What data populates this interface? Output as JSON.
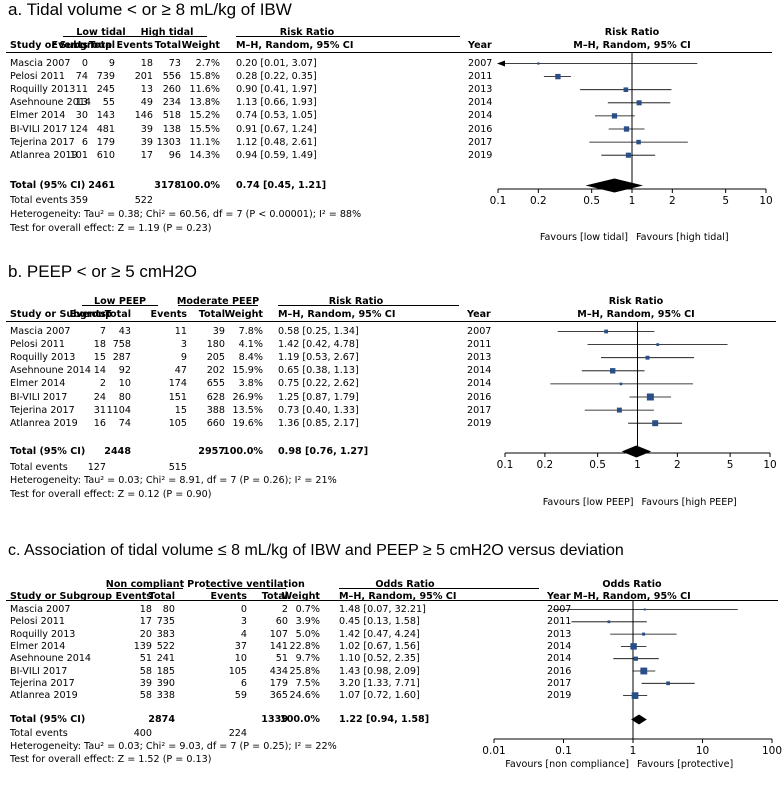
{
  "panels": [
    {
      "title": "a. Tidal volume < or ≥ 8 mL/kg of IBW",
      "group1": "Low tidal",
      "group2": "High tidal",
      "h_study": "Study or Subgroup",
      "h_events1": "Events",
      "h_total1": "Total",
      "h_events2": "Events",
      "h_total2": "Total",
      "h_weight": "Weight",
      "h_measure": "Risk Ratio",
      "h_method": "M–H, Random, 95% CI",
      "h_year": "Year",
      "rows": [
        {
          "study": "Mascia 2007",
          "e1": "0",
          "n1": "9",
          "e2": "18",
          "n2": "73",
          "weight": "2.7%",
          "ci": "0.20 [0.01, 3.07]",
          "year": "2007"
        },
        {
          "study": "Pelosi 2011",
          "e1": "74",
          "n1": "739",
          "e2": "201",
          "n2": "556",
          "weight": "15.8%",
          "ci": "0.28 [0.22, 0.35]",
          "year": "2011"
        },
        {
          "study": "Roquilly 2013",
          "e1": "11",
          "n1": "245",
          "e2": "13",
          "n2": "260",
          "weight": "11.6%",
          "ci": "0.90 [0.41, 1.97]",
          "year": "2013"
        },
        {
          "study": "Asehnoune 2014",
          "e1": "13",
          "n1": "55",
          "e2": "49",
          "n2": "234",
          "weight": "13.8%",
          "ci": "1.13 [0.66, 1.93]",
          "year": "2014"
        },
        {
          "study": "Elmer 2014",
          "e1": "30",
          "n1": "143",
          "e2": "146",
          "n2": "518",
          "weight": "15.2%",
          "ci": "0.74 [0.53, 1.05]",
          "year": "2014"
        },
        {
          "study": "BI-VILI 2017",
          "e1": "124",
          "n1": "481",
          "e2": "39",
          "n2": "138",
          "weight": "15.5%",
          "ci": "0.91 [0.67, 1.24]",
          "year": "2016"
        },
        {
          "study": "Tejerina 2017",
          "e1": "6",
          "n1": "179",
          "e2": "39",
          "n2": "1303",
          "weight": "11.1%",
          "ci": "1.12 [0.48, 2.61]",
          "year": "2017"
        },
        {
          "study": "Atlanrea 2019",
          "e1": "101",
          "n1": "610",
          "e2": "17",
          "n2": "96",
          "weight": "14.3%",
          "ci": "0.94 [0.59, 1.49]",
          "year": "2019"
        }
      ],
      "total": {
        "label": "Total (95% CI)",
        "n1": "2461",
        "n2": "3178",
        "weight": "100.0%",
        "ci": "0.74 [0.45, 1.21]"
      },
      "events": {
        "label": "Total events",
        "e1": "359",
        "e2": "522"
      },
      "heterogeneity": "Heterogeneity: Tau² = 0.38; Chi² = 60.56, df = 7 (P < 0.00001); I² = 88%",
      "overall": "Test for overall effect: Z = 1.19 (P = 0.23)",
      "plot_h1": "Risk Ratio",
      "plot_h2": "M–H, Random, 95% CI",
      "favours_left": "Favours [low tidal]",
      "favours_right": "Favours [high tidal]"
    },
    {
      "title": "b. PEEP  < or ≥ 5 cmH2O",
      "group1": "Low PEEP",
      "group2": "Moderate PEEP",
      "h_study": "Study or Subgroup",
      "h_events1": "Events",
      "h_total1": "Total",
      "h_events2": "Events",
      "h_total2": "Total",
      "h_weight": "Weight",
      "h_measure": "Risk Ratio",
      "h_method": "M–H, Random, 95% CI",
      "h_year": "Year",
      "rows": [
        {
          "study": "Mascia 2007",
          "e1": "7",
          "n1": "43",
          "e2": "11",
          "n2": "39",
          "weight": "7.8%",
          "ci": "0.58 [0.25, 1.34]",
          "year": "2007"
        },
        {
          "study": "Pelosi 2011",
          "e1": "18",
          "n1": "758",
          "e2": "3",
          "n2": "180",
          "weight": "4.1%",
          "ci": "1.42 [0.42, 4.78]",
          "year": "2011"
        },
        {
          "study": "Roquilly 2013",
          "e1": "15",
          "n1": "287",
          "e2": "9",
          "n2": "205",
          "weight": "8.4%",
          "ci": "1.19 [0.53, 2.67]",
          "year": "2013"
        },
        {
          "study": "Asehnoune 2014",
          "e1": "14",
          "n1": "92",
          "e2": "47",
          "n2": "202",
          "weight": "15.9%",
          "ci": "0.65 [0.38, 1.13]",
          "year": "2014"
        },
        {
          "study": "Elmer 2014",
          "e1": "2",
          "n1": "10",
          "e2": "174",
          "n2": "655",
          "weight": "3.8%",
          "ci": "0.75 [0.22, 2.62]",
          "year": "2014"
        },
        {
          "study": "BI-VILI 2017",
          "e1": "24",
          "n1": "80",
          "e2": "151",
          "n2": "628",
          "weight": "26.9%",
          "ci": "1.25 [0.87, 1.79]",
          "year": "2016"
        },
        {
          "study": "Tejerina 2017",
          "e1": "31",
          "n1": "1104",
          "e2": "15",
          "n2": "388",
          "weight": "13.5%",
          "ci": "0.73 [0.40, 1.33]",
          "year": "2017"
        },
        {
          "study": "Atlanrea 2019",
          "e1": "16",
          "n1": "74",
          "e2": "105",
          "n2": "660",
          "weight": "19.6%",
          "ci": "1.36 [0.85, 2.17]",
          "year": "2019"
        }
      ],
      "total": {
        "label": "Total (95% CI)",
        "n1": "2448",
        "n2": "2957",
        "weight": "100.0%",
        "ci": "0.98 [0.76, 1.27]"
      },
      "events": {
        "label": "Total events",
        "e1": "127",
        "e2": "515"
      },
      "heterogeneity": "Heterogeneity: Tau² = 0.03; Chi² = 8.91, df = 7 (P = 0.26); I² = 21%",
      "overall": "Test for overall effect: Z = 0.12 (P = 0.90)",
      "plot_h1": "Risk Ratio",
      "plot_h2": "M–H, Random, 95% CI",
      "favours_left": "Favours [low PEEP]",
      "favours_right": "Favours [high PEEP]"
    },
    {
      "title": "c. Association of tidal volume ≤ 8 mL/kg of IBW and PEEP ≥ 5 cmH2O versus deviation",
      "group1": "Non compliant",
      "group2": "Protective ventilation",
      "h_study": "Study or Subgroup",
      "h_events1": "Events",
      "h_total1": "Total",
      "h_events2": "Events",
      "h_total2": "Total",
      "h_weight": "Weight",
      "h_measure": "Odds Ratio",
      "h_method": "M–H, Random, 95% CI",
      "h_year": "Year",
      "rows": [
        {
          "study": "Mascia 2007",
          "e1": "18",
          "n1": "80",
          "e2": "0",
          "n2": "2",
          "weight": "0.7%",
          "ci": "1.48 [0.07, 32.21]",
          "year": "2007"
        },
        {
          "study": "Pelosi 2011",
          "e1": "17",
          "n1": "735",
          "e2": "3",
          "n2": "60",
          "weight": "3.9%",
          "ci": "0.45 [0.13, 1.58]",
          "year": "2011"
        },
        {
          "study": "Roquilly 2013",
          "e1": "20",
          "n1": "383",
          "e2": "4",
          "n2": "107",
          "weight": "5.0%",
          "ci": "1.42 [0.47, 4.24]",
          "year": "2013"
        },
        {
          "study": "Elmer 2014",
          "e1": "139",
          "n1": "522",
          "e2": "37",
          "n2": "141",
          "weight": "22.8%",
          "ci": "1.02 [0.67, 1.56]",
          "year": "2014"
        },
        {
          "study": "Asehnoune 2014",
          "e1": "51",
          "n1": "241",
          "e2": "10",
          "n2": "51",
          "weight": "9.7%",
          "ci": "1.10 [0.52, 2.35]",
          "year": "2014"
        },
        {
          "study": "BI-VILI 2017",
          "e1": "58",
          "n1": "185",
          "e2": "105",
          "n2": "434",
          "weight": "25.8%",
          "ci": "1.43 [0.98, 2.09]",
          "year": "2016"
        },
        {
          "study": "Tejerina 2017",
          "e1": "39",
          "n1": "390",
          "e2": "6",
          "n2": "179",
          "weight": "7.5%",
          "ci": "3.20 [1.33, 7.71]",
          "year": "2017"
        },
        {
          "study": "Atlanrea 2019",
          "e1": "58",
          "n1": "338",
          "e2": "59",
          "n2": "365",
          "weight": "24.6%",
          "ci": "1.07 [0.72, 1.60]",
          "year": "2019"
        }
      ],
      "total": {
        "label": "Total (95% CI)",
        "n1": "2874",
        "n2": "1339",
        "weight": "100.0%",
        "ci": "1.22 [0.94, 1.58]"
      },
      "events": {
        "label": "Total events",
        "e1": "400",
        "e2": "224"
      },
      "heterogeneity": "Heterogeneity: Tau² = 0.03; Chi² = 9.03, df = 7 (P = 0.25); I² = 22%",
      "overall": "Test for overall effect: Z = 1.52 (P = 0.13)",
      "plot_h1": "Odds Ratio",
      "plot_h2": "M–H, Random, 95% CI",
      "favours_left": "Favours [non compliance]",
      "favours_right": "Favours [protective]"
    }
  ],
  "chart_data": [
    {
      "type": "forest",
      "title": "a. Tidal volume < or ≥ 8 mL/kg of IBW",
      "measure": "Risk Ratio",
      "scale": "log",
      "xlim": [
        0.1,
        10
      ],
      "ticks": [
        0.1,
        0.2,
        0.5,
        1,
        2,
        5,
        10
      ],
      "tick_labels": [
        "0.1",
        "0.2",
        "0.5",
        "1",
        "2",
        "5",
        "10"
      ],
      "studies": [
        {
          "name": "Mascia 2007",
          "est": 0.2,
          "lo": 0.01,
          "hi": 3.07,
          "weight": 2.7
        },
        {
          "name": "Pelosi 2011",
          "est": 0.28,
          "lo": 0.22,
          "hi": 0.35,
          "weight": 15.8
        },
        {
          "name": "Roquilly 2013",
          "est": 0.9,
          "lo": 0.41,
          "hi": 1.97,
          "weight": 11.6
        },
        {
          "name": "Asehnoune 2014",
          "est": 1.13,
          "lo": 0.66,
          "hi": 1.93,
          "weight": 13.8
        },
        {
          "name": "Elmer 2014",
          "est": 0.74,
          "lo": 0.53,
          "hi": 1.05,
          "weight": 15.2
        },
        {
          "name": "BI-VILI 2017",
          "est": 0.91,
          "lo": 0.67,
          "hi": 1.24,
          "weight": 15.5
        },
        {
          "name": "Tejerina 2017",
          "est": 1.12,
          "lo": 0.48,
          "hi": 2.61,
          "weight": 11.1
        },
        {
          "name": "Atlanrea 2019",
          "est": 0.94,
          "lo": 0.59,
          "hi": 1.49,
          "weight": 14.3
        }
      ],
      "pooled": {
        "est": 0.74,
        "lo": 0.45,
        "hi": 1.21
      },
      "xlabel_left": "Favours [low tidal]",
      "xlabel_right": "Favours [high tidal]"
    },
    {
      "type": "forest",
      "title": "b. PEEP  < or ≥ 5 cmH2O",
      "measure": "Risk Ratio",
      "scale": "log",
      "xlim": [
        0.1,
        10
      ],
      "ticks": [
        0.1,
        0.2,
        0.5,
        1,
        2,
        5,
        10
      ],
      "tick_labels": [
        "0.1",
        "0.2",
        "0.5",
        "1",
        "2",
        "5",
        "10"
      ],
      "studies": [
        {
          "name": "Mascia 2007",
          "est": 0.58,
          "lo": 0.25,
          "hi": 1.34,
          "weight": 7.8
        },
        {
          "name": "Pelosi 2011",
          "est": 1.42,
          "lo": 0.42,
          "hi": 4.78,
          "weight": 4.1
        },
        {
          "name": "Roquilly 2013",
          "est": 1.19,
          "lo": 0.53,
          "hi": 2.67,
          "weight": 8.4
        },
        {
          "name": "Asehnoune 2014",
          "est": 0.65,
          "lo": 0.38,
          "hi": 1.13,
          "weight": 15.9
        },
        {
          "name": "Elmer 2014",
          "est": 0.75,
          "lo": 0.22,
          "hi": 2.62,
          "weight": 3.8
        },
        {
          "name": "BI-VILI 2017",
          "est": 1.25,
          "lo": 0.87,
          "hi": 1.79,
          "weight": 26.9
        },
        {
          "name": "Tejerina 2017",
          "est": 0.73,
          "lo": 0.4,
          "hi": 1.33,
          "weight": 13.5
        },
        {
          "name": "Atlanrea 2019",
          "est": 1.36,
          "lo": 0.85,
          "hi": 2.17,
          "weight": 19.6
        }
      ],
      "pooled": {
        "est": 0.98,
        "lo": 0.76,
        "hi": 1.27
      },
      "xlabel_left": "Favours [low PEEP]",
      "xlabel_right": "Favours [high PEEP]"
    },
    {
      "type": "forest",
      "title": "c. Association of tidal volume ≤ 8 mL/kg of IBW and PEEP ≥ 5 cmH2O versus deviation",
      "measure": "Odds Ratio",
      "scale": "log",
      "xlim": [
        0.01,
        100
      ],
      "ticks": [
        0.01,
        0.1,
        1,
        10,
        100
      ],
      "tick_labels": [
        "0.01",
        "0.1",
        "1",
        "10",
        "100"
      ],
      "studies": [
        {
          "name": "Mascia 2007",
          "est": 1.48,
          "lo": 0.07,
          "hi": 32.21,
          "weight": 0.7
        },
        {
          "name": "Pelosi 2011",
          "est": 0.45,
          "lo": 0.13,
          "hi": 1.58,
          "weight": 3.9
        },
        {
          "name": "Roquilly 2013",
          "est": 1.42,
          "lo": 0.47,
          "hi": 4.24,
          "weight": 5.0
        },
        {
          "name": "Elmer 2014",
          "est": 1.02,
          "lo": 0.67,
          "hi": 1.56,
          "weight": 22.8
        },
        {
          "name": "Asehnoune 2014",
          "est": 1.1,
          "lo": 0.52,
          "hi": 2.35,
          "weight": 9.7
        },
        {
          "name": "BI-VILI 2017",
          "est": 1.43,
          "lo": 0.98,
          "hi": 2.09,
          "weight": 25.8
        },
        {
          "name": "Tejerina 2017",
          "est": 3.2,
          "lo": 1.33,
          "hi": 7.71,
          "weight": 7.5
        },
        {
          "name": "Atlanrea 2019",
          "est": 1.07,
          "lo": 0.72,
          "hi": 1.6,
          "weight": 24.6
        }
      ],
      "pooled": {
        "est": 1.22,
        "lo": 0.94,
        "hi": 1.58
      },
      "xlabel_left": "Favours [non compliance]",
      "xlabel_right": "Favours [protective]"
    }
  ],
  "colors": {
    "marker": "#2a4f86",
    "text": "#000000"
  }
}
